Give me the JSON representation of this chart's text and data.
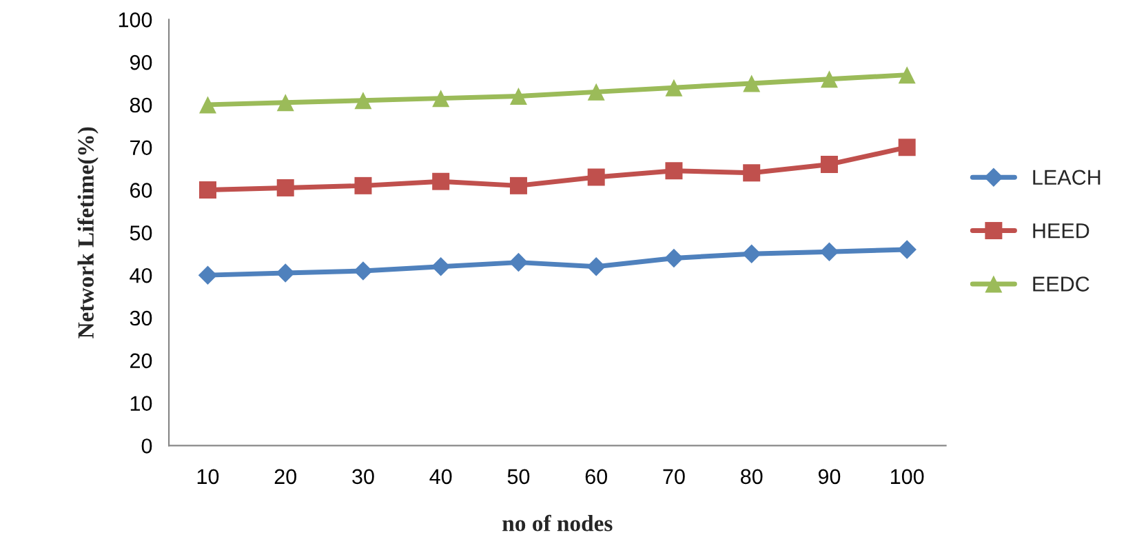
{
  "chart_data": {
    "type": "line",
    "xlabel": "no of nodes",
    "ylabel": "Network Lifetime(%)",
    "categories": [
      "10",
      "20",
      "30",
      "40",
      "50",
      "60",
      "70",
      "80",
      "90",
      "100"
    ],
    "series": [
      {
        "name": "LEACH",
        "color": "#4f81bd",
        "marker": "diamond",
        "values": [
          40,
          40.5,
          41,
          42,
          43,
          42,
          44,
          45,
          45.5,
          46
        ]
      },
      {
        "name": "HEED",
        "color": "#c0504d",
        "marker": "square",
        "values": [
          60,
          60.5,
          61,
          62,
          61,
          63,
          64.5,
          64,
          66,
          70
        ]
      },
      {
        "name": "EEDC",
        "color": "#9bbb59",
        "marker": "triangle",
        "values": [
          80,
          80.5,
          81,
          81.5,
          82,
          83,
          84,
          85,
          86,
          87
        ]
      }
    ],
    "ylim": [
      0,
      100
    ],
    "yticks": [
      0,
      10,
      20,
      30,
      40,
      50,
      60,
      70,
      80,
      90,
      100
    ],
    "grid": false,
    "legend": "right",
    "line_style": "solid"
  }
}
